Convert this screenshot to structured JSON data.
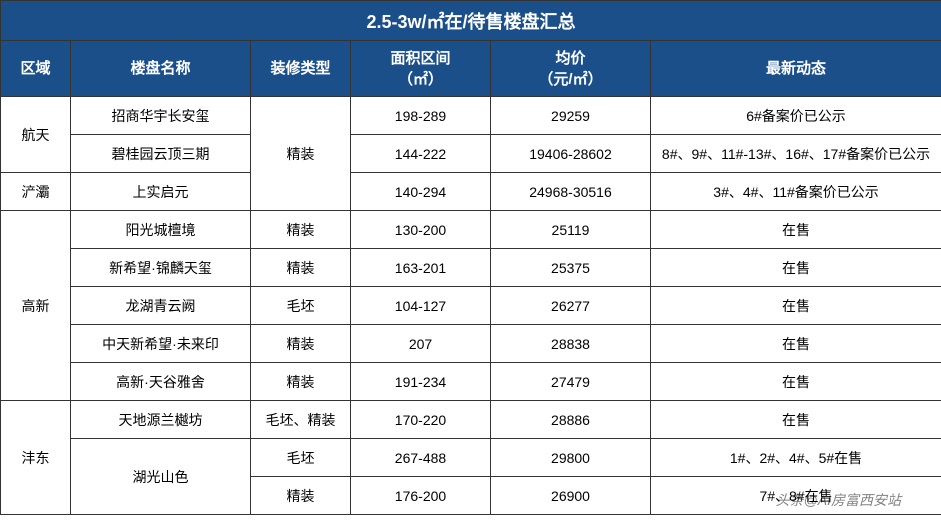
{
  "title": "2.5-3w/㎡在/待售楼盘汇总",
  "headers": {
    "area": "区域",
    "name": "楼盘名称",
    "deco": "装修类型",
    "size": "面积区间\n（㎡）",
    "price": "均价\n（元/㎡）",
    "note": "最新动态"
  },
  "colors": {
    "header_bg": "#1b4f8a",
    "header_fg": "#ffffff",
    "cell_bg": "#ffffff",
    "cell_fg": "#000000",
    "border": "#333333"
  },
  "areas": [
    {
      "label": "航天",
      "rowspan": 2
    },
    {
      "label": "浐灞",
      "rowspan": 1
    },
    {
      "label": "高新",
      "rowspan": 5
    },
    {
      "label": "沣东",
      "rowspan": 3
    }
  ],
  "rows": [
    {
      "name": "招商华宇长安玺",
      "deco": null,
      "size": "198-289",
      "price": "29259",
      "note": "6#备案价已公示"
    },
    {
      "name": "碧桂园云顶三期",
      "deco": null,
      "size": "144-222",
      "price": "19406-28602",
      "note": "8#、9#、11#-13#、16#、17#备案价已公示"
    },
    {
      "name": "上实启元",
      "deco": null,
      "size": "140-294",
      "price": "24968-30516",
      "note": "3#、4#、11#备案价已公示"
    },
    {
      "name": "阳光城檀境",
      "deco": "精装",
      "size": "130-200",
      "price": "25119",
      "note": "在售"
    },
    {
      "name": "新希望·锦麟天玺",
      "deco": "精装",
      "size": "163-201",
      "price": "25375",
      "note": "在售"
    },
    {
      "name": "龙湖青云阙",
      "deco": "毛坯",
      "size": "104-127",
      "price": "26277",
      "note": "在售"
    },
    {
      "name": "中天新希望·未来印",
      "deco": "精装",
      "size": "207",
      "price": "28838",
      "note": "在售"
    },
    {
      "name": "高新·天谷雅舍",
      "deco": "精装",
      "size": "191-234",
      "price": "27479",
      "note": "在售"
    },
    {
      "name": "天地源兰樾坊",
      "deco": "毛坯、精装",
      "size": "170-220",
      "price": "28886",
      "note": "在售"
    },
    {
      "name": null,
      "deco": "毛坯",
      "size": "267-488",
      "price": "29800",
      "note": "1#、2#、4#、5#在售"
    },
    {
      "name": null,
      "deco": "精装",
      "size": "176-200",
      "price": "26900",
      "note": "7#、8#在售"
    }
  ],
  "name_merges": [
    {
      "row": 9,
      "label": "湖光山色",
      "rowspan": 2
    }
  ],
  "deco_merge": {
    "row": 0,
    "label": "精装",
    "rowspan": 3
  },
  "watermark": "头条@AI房富西安站"
}
